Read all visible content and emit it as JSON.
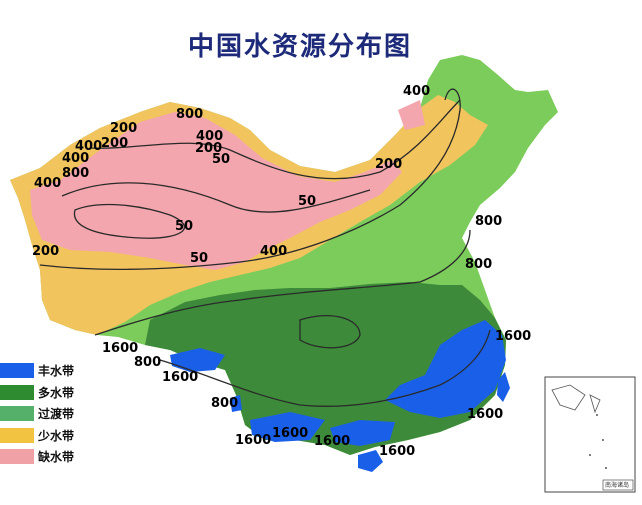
{
  "title": "中国水资源分布图",
  "colors": {
    "very_wet": "#1a5fe8",
    "wet": "#3d8b3a",
    "transition": "#7ccc5c",
    "dry": "#f2c45e",
    "very_dry": "#f3a6ad",
    "isoline": "#2a2a2a",
    "title": "#1d2a7a"
  },
  "legend": [
    {
      "label": "丰水带",
      "color": "#1a5fe8"
    },
    {
      "label": "多水带",
      "color": "#2f8b2f"
    },
    {
      "label": "过渡带",
      "color": "#55b06a"
    },
    {
      "label": "少水带",
      "color": "#f2c341"
    },
    {
      "label": "缺水带",
      "color": "#f0a1a6"
    }
  ],
  "isoline_labels": [
    "800",
    "200",
    "400",
    "200",
    "400",
    "400",
    "800",
    "50",
    "400",
    "200",
    "50",
    "50",
    "50",
    "400",
    "200",
    "800",
    "800",
    "200",
    "400",
    "800",
    "1600",
    "1600",
    "800",
    "1600",
    "1600",
    "1600",
    "1600",
    "1600",
    "1600"
  ],
  "inset": {
    "label": "南海诸岛",
    "icon": "south-china-sea-inset"
  }
}
